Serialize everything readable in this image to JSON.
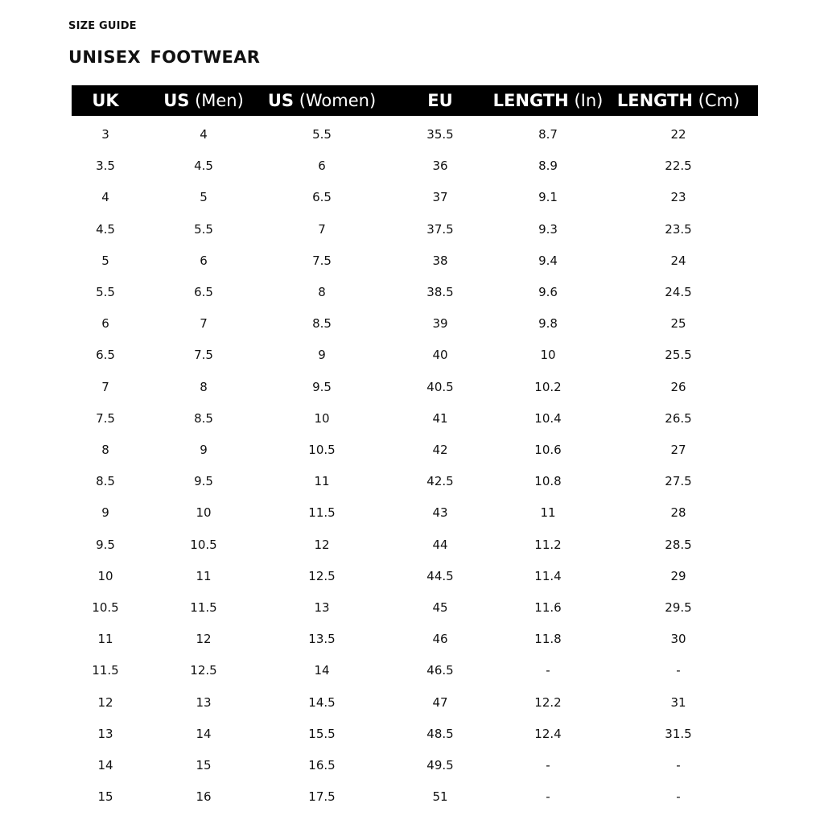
{
  "kicker": "SIZE GUIDE",
  "title": "UNISEX  FOOTWEAR",
  "columns": [
    {
      "bold": "UK",
      "light": ""
    },
    {
      "bold": "US",
      "light": "(Men)"
    },
    {
      "bold": "US",
      "light": "(Women)"
    },
    {
      "bold": "EU",
      "light": ""
    },
    {
      "bold": "LENGTH",
      "light": "(In)"
    },
    {
      "bold": "LENGTH",
      "light": "(Cm)"
    }
  ],
  "rows": [
    [
      "3",
      "4",
      "5.5",
      "35.5",
      "8.7",
      "22"
    ],
    [
      "3.5",
      "4.5",
      "6",
      "36",
      "8.9",
      "22.5"
    ],
    [
      "4",
      "5",
      "6.5",
      "37",
      "9.1",
      "23"
    ],
    [
      "4.5",
      "5.5",
      "7",
      "37.5",
      "9.3",
      "23.5"
    ],
    [
      "5",
      "6",
      "7.5",
      "38",
      "9.4",
      "24"
    ],
    [
      "5.5",
      "6.5",
      "8",
      "38.5",
      "9.6",
      "24.5"
    ],
    [
      "6",
      "7",
      "8.5",
      "39",
      "9.8",
      "25"
    ],
    [
      "6.5",
      "7.5",
      "9",
      "40",
      "10",
      "25.5"
    ],
    [
      "7",
      "8",
      "9.5",
      "40.5",
      "10.2",
      "26"
    ],
    [
      "7.5",
      "8.5",
      "10",
      "41",
      "10.4",
      "26.5"
    ],
    [
      "8",
      "9",
      "10.5",
      "42",
      "10.6",
      "27"
    ],
    [
      "8.5",
      "9.5",
      "11",
      "42.5",
      "10.8",
      "27.5"
    ],
    [
      "9",
      "10",
      "11.5",
      "43",
      "11",
      "28"
    ],
    [
      "9.5",
      "10.5",
      "12",
      "44",
      "11.2",
      "28.5"
    ],
    [
      "10",
      "11",
      "12.5",
      "44.5",
      "11.4",
      "29"
    ],
    [
      "10.5",
      "11.5",
      "13",
      "45",
      "11.6",
      "29.5"
    ],
    [
      "11",
      "12",
      "13.5",
      "46",
      "11.8",
      "30"
    ],
    [
      "11.5",
      "12.5",
      "14",
      "46.5",
      "-",
      "-"
    ],
    [
      "12",
      "13",
      "14.5",
      "47",
      "12.2",
      "31"
    ],
    [
      "13",
      "14",
      "15.5",
      "48.5",
      "12.4",
      "31.5"
    ],
    [
      "14",
      "15",
      "16.5",
      "49.5",
      "-",
      "-"
    ],
    [
      "15",
      "16",
      "17.5",
      "51",
      "-",
      "-"
    ]
  ]
}
